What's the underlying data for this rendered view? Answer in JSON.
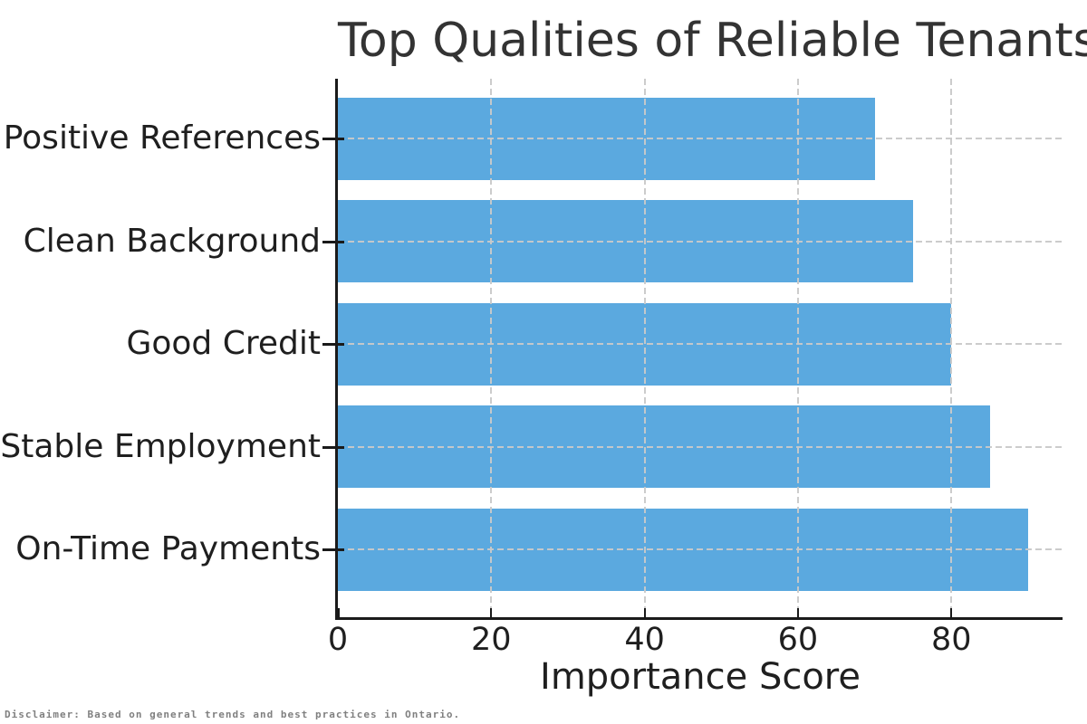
{
  "chart_data": {
    "type": "bar",
    "orientation": "horizontal",
    "title": "Top Qualities of Reliable Tenants",
    "xlabel": "Importance Score",
    "ylabel": "",
    "categories": [
      "Positive References",
      "Clean Background",
      "Good Credit",
      "Stable Employment",
      "On-Time Payments"
    ],
    "values": [
      70,
      75,
      80,
      85,
      90
    ],
    "categories_note": "listed top-to-bottom as displayed; values are importance scores",
    "xlim": [
      0,
      94.5
    ],
    "xticks": [
      0,
      20,
      40,
      60,
      80
    ],
    "grid": "dashed gridlines on both axes, drawn over bars",
    "legend": "none",
    "annotation": "Disclaimer: Based on general trends and best practices in Ontario."
  },
  "colors": {
    "background": "#ffffff",
    "bar": "#5BA9DF",
    "grid": "#c9c9c9",
    "spine": "#1a1a1a",
    "title_text": "#333333",
    "tick_text": "#1f1f1f",
    "disclaimer_text": "#808080"
  }
}
